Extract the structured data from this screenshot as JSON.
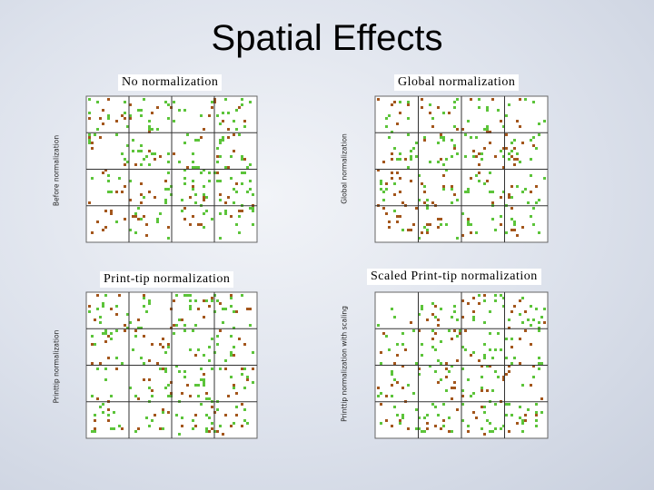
{
  "title": "Spatial Effects",
  "panels": [
    {
      "caption": "No normalization",
      "y_label": "Before normalization"
    },
    {
      "caption": "Global normalization",
      "y_label": "Global normalization"
    },
    {
      "caption": "Print-tip normalization",
      "y_label": "Printtip normalization"
    },
    {
      "caption": "Scaled Print-tip normalization",
      "y_label": "Printtip normalization with scaling"
    }
  ]
}
